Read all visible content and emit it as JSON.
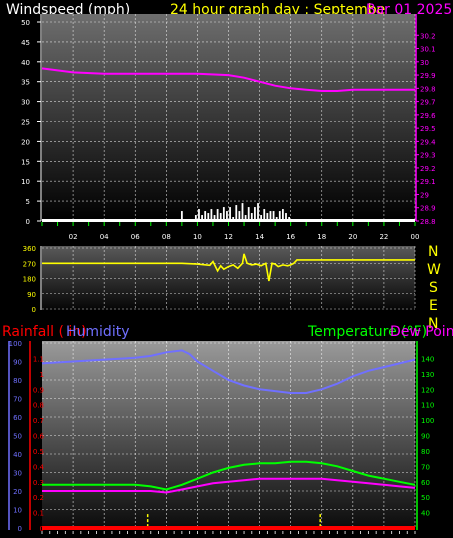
{
  "colors": {
    "wind_title": "#ffffff",
    "graph_title": "#ffff00",
    "pressure": "#ff00ff",
    "direction": "#ffff00",
    "rain": "#ff0000",
    "humidity": "#7070ff",
    "temperature": "#00ff00",
    "dewpoint": "#ff00ff",
    "grid": "#ffffff"
  },
  "header": {
    "wind_title": "Windspeed (mph)",
    "graph_title": "24 hour graph day : Septembe",
    "pressure_title": "Bar 01 2025"
  },
  "panel3": {
    "rain_title": "Rainfall ( in)",
    "humidity_title": "Humidity",
    "temperature_title": "Temperature (°F)",
    "dewpoint_title": "Dew Point"
  },
  "compass": [
    "N",
    "W",
    "S",
    "E",
    "N"
  ],
  "chart_data": [
    {
      "type": "line",
      "x_ticks": [
        "02",
        "04",
        "06",
        "08",
        "10",
        "12",
        "14",
        "16",
        "18",
        "20",
        "22",
        "00"
      ],
      "y_left_ticks": [
        "0",
        "5",
        "10",
        "15",
        "20",
        "25",
        "30",
        "35",
        "40",
        "45",
        "50"
      ],
      "y_left_range": [
        0,
        50
      ],
      "y_right_ticks": [
        "28.8",
        "28.9",
        "29",
        "29.1",
        "29.2",
        "29.3",
        "29.4",
        "29.5",
        "29.6",
        "29.7",
        "29.8",
        "29.9",
        "30",
        "30.1",
        "30.2"
      ],
      "y_right_range": [
        28.8,
        30.3
      ],
      "series": [
        {
          "key": "pressure",
          "x": [
            0,
            2,
            4,
            6,
            8,
            10,
            12,
            13,
            14,
            15,
            16,
            17,
            18,
            19,
            20,
            22,
            24
          ],
          "y": [
            29.95,
            29.92,
            29.91,
            29.91,
            29.91,
            29.91,
            29.9,
            29.88,
            29.85,
            29.82,
            29.8,
            29.79,
            29.78,
            29.78,
            29.79,
            29.79,
            29.79
          ]
        },
        {
          "key": "windspeed",
          "x": [
            9.0,
            9.2,
            9.9,
            10.1,
            10.3,
            10.5,
            10.7,
            10.9,
            11.1,
            11.3,
            11.5,
            11.7,
            11.9,
            12.1,
            12.3,
            12.5,
            12.7,
            12.9,
            13.1,
            13.3,
            13.5,
            13.7,
            13.9,
            14.1,
            14.3,
            14.5,
            14.7,
            14.9,
            15.1,
            15.3,
            15.5,
            15.7,
            15.9
          ],
          "y": [
            2.5,
            0.5,
            1.5,
            3.0,
            1.5,
            2.5,
            2.0,
            3.0,
            1.5,
            3.0,
            2.0,
            3.5,
            2.5,
            3.5,
            1.0,
            4.0,
            2.5,
            4.5,
            1.5,
            3.5,
            2.0,
            3.5,
            4.5,
            1.5,
            3.0,
            2.0,
            2.5,
            2.5,
            1.0,
            2.5,
            3.0,
            2.0,
            1.0
          ]
        }
      ]
    },
    {
      "type": "line",
      "y_ticks": [
        "0",
        "90",
        "180",
        "270",
        "360"
      ],
      "y_range": [
        0,
        360
      ],
      "series": [
        {
          "key": "direction",
          "x": [
            0,
            9.0,
            10.0,
            10.8,
            11.0,
            11.3,
            11.5,
            11.7,
            12.0,
            12.3,
            12.6,
            12.9,
            13.0,
            13.2,
            13.5,
            13.8,
            14.1,
            14.4,
            14.6,
            14.8,
            15.0,
            15.2,
            15.5,
            15.8,
            16.0,
            16.2,
            16.4,
            24
          ],
          "y": [
            270,
            270,
            265,
            258,
            280,
            225,
            255,
            235,
            250,
            260,
            240,
            270,
            325,
            270,
            260,
            265,
            255,
            270,
            165,
            270,
            265,
            250,
            260,
            255,
            260,
            270,
            290,
            290
          ]
        }
      ]
    },
    {
      "type": "line",
      "y_left_ticks": [
        "0",
        "10",
        "20",
        "30",
        "40",
        "50",
        "60",
        "70",
        "80",
        "90",
        "100"
      ],
      "humidity_range": [
        0,
        100
      ],
      "y_rain_ticks": [
        "0",
        "0.1",
        "0.2",
        "0.3",
        "0.4",
        "0.5",
        "0.6",
        "0.7",
        "0.8",
        "0.9",
        "1",
        "1.1"
      ],
      "rain_range": [
        0,
        1.2
      ],
      "y_right_ticks": [
        "40",
        "50",
        "60",
        "70",
        "80",
        "90",
        "100",
        "110",
        "120",
        "130",
        "140"
      ],
      "temp_range": [
        30,
        150
      ],
      "series": [
        {
          "key": "humidity",
          "x": [
            0,
            2,
            4,
            6,
            7,
            8,
            9,
            9.5,
            10,
            11,
            12,
            13,
            14,
            15,
            16,
            17,
            18,
            19,
            20,
            21,
            22,
            23,
            24
          ],
          "y": [
            89,
            90,
            91,
            92,
            93,
            95,
            96,
            94,
            90,
            85,
            80,
            77,
            75,
            74,
            73,
            73,
            75,
            78,
            82,
            85,
            87,
            89,
            91
          ]
        },
        {
          "key": "temperature",
          "x": [
            0,
            2,
            4,
            6,
            7,
            8,
            9,
            10,
            11,
            12,
            13,
            14,
            15,
            16,
            17,
            18,
            19,
            20,
            21,
            22,
            23,
            24
          ],
          "y": [
            58,
            58,
            58,
            58,
            57,
            55,
            58,
            62,
            66,
            69,
            71,
            72,
            72,
            73,
            73,
            72,
            70,
            67,
            64,
            62,
            60,
            58
          ]
        },
        {
          "key": "dewpoint",
          "x": [
            0,
            2,
            4,
            6,
            7,
            8,
            9,
            10,
            11,
            12,
            13,
            14,
            15,
            16,
            17,
            18,
            19,
            20,
            21,
            22,
            23,
            24
          ],
          "y": [
            54,
            54,
            54,
            54,
            54,
            53,
            55,
            57,
            59,
            60,
            61,
            62,
            62,
            62,
            62,
            62,
            61,
            60,
            59,
            58,
            57,
            56
          ]
        },
        {
          "key": "rain",
          "x": [
            6.8,
            17.9
          ],
          "y": [
            0.09,
            0.09
          ]
        }
      ]
    }
  ]
}
